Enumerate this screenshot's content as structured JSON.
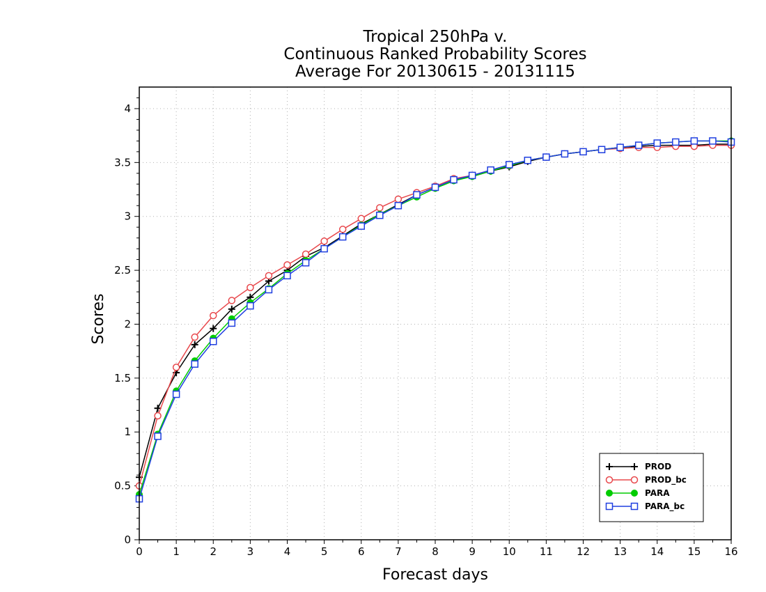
{
  "chart_data": {
    "type": "line",
    "title": [
      "Tropical 250hPa v.",
      "Continuous Ranked Probability Scores",
      "Average For 20130615 - 20131115"
    ],
    "xlabel": "Forecast days",
    "ylabel": "Scores",
    "xlim": [
      0,
      16
    ],
    "ylim": [
      0,
      4.2
    ],
    "xticks": [
      "0",
      "1",
      "2",
      "3",
      "4",
      "5",
      "6",
      "7",
      "8",
      "9",
      "10",
      "11",
      "12",
      "13",
      "14",
      "15",
      "16"
    ],
    "yticks": [
      "0",
      "0.5",
      "1",
      "1.5",
      "2",
      "2.5",
      "3",
      "3.5",
      "4"
    ],
    "grid": true,
    "legend_position": "bottom-right",
    "x": [
      0,
      0.5,
      1,
      1.5,
      2,
      2.5,
      3,
      3.5,
      4,
      4.5,
      5,
      5.5,
      6,
      6.5,
      7,
      7.5,
      8,
      8.5,
      9,
      9.5,
      10,
      10.5,
      11,
      11.5,
      12,
      12.5,
      13,
      13.5,
      14,
      14.5,
      15,
      15.5,
      16
    ],
    "series": [
      {
        "name": "PROD",
        "color": "#000000",
        "marker": "plus",
        "values": [
          0.58,
          1.22,
          1.55,
          1.81,
          1.96,
          2.14,
          2.25,
          2.4,
          2.5,
          2.63,
          2.71,
          2.82,
          2.93,
          3.02,
          3.11,
          3.2,
          3.27,
          3.34,
          3.37,
          3.42,
          3.46,
          3.51,
          3.55,
          3.58,
          3.6,
          3.62,
          3.64,
          3.65,
          3.66,
          3.66,
          3.66,
          3.67,
          3.67
        ]
      },
      {
        "name": "PROD_bc",
        "color": "#e8484c",
        "marker": "circle",
        "values": [
          0.5,
          1.15,
          1.6,
          1.88,
          2.08,
          2.22,
          2.34,
          2.45,
          2.55,
          2.65,
          2.77,
          2.88,
          2.98,
          3.08,
          3.16,
          3.22,
          3.28,
          3.35,
          3.38,
          3.43,
          3.47,
          3.52,
          3.55,
          3.58,
          3.6,
          3.62,
          3.63,
          3.64,
          3.64,
          3.65,
          3.65,
          3.66,
          3.66
        ]
      },
      {
        "name": "PARA",
        "color": "#00cc00",
        "marker": "dot",
        "values": [
          0.42,
          0.98,
          1.38,
          1.66,
          1.87,
          2.05,
          2.2,
          2.33,
          2.47,
          2.59,
          2.7,
          2.81,
          2.92,
          3.02,
          3.1,
          3.18,
          3.26,
          3.33,
          3.37,
          3.42,
          3.47,
          3.52,
          3.55,
          3.58,
          3.6,
          3.62,
          3.64,
          3.66,
          3.68,
          3.69,
          3.7,
          3.7,
          3.7
        ]
      },
      {
        "name": "PARA_bc",
        "color": "#1f3fe0",
        "marker": "square",
        "values": [
          0.38,
          0.96,
          1.35,
          1.63,
          1.84,
          2.01,
          2.17,
          2.32,
          2.45,
          2.57,
          2.7,
          2.81,
          2.91,
          3.01,
          3.1,
          3.2,
          3.27,
          3.34,
          3.38,
          3.43,
          3.48,
          3.52,
          3.55,
          3.58,
          3.6,
          3.62,
          3.64,
          3.66,
          3.68,
          3.69,
          3.7,
          3.7,
          3.69
        ]
      }
    ]
  }
}
